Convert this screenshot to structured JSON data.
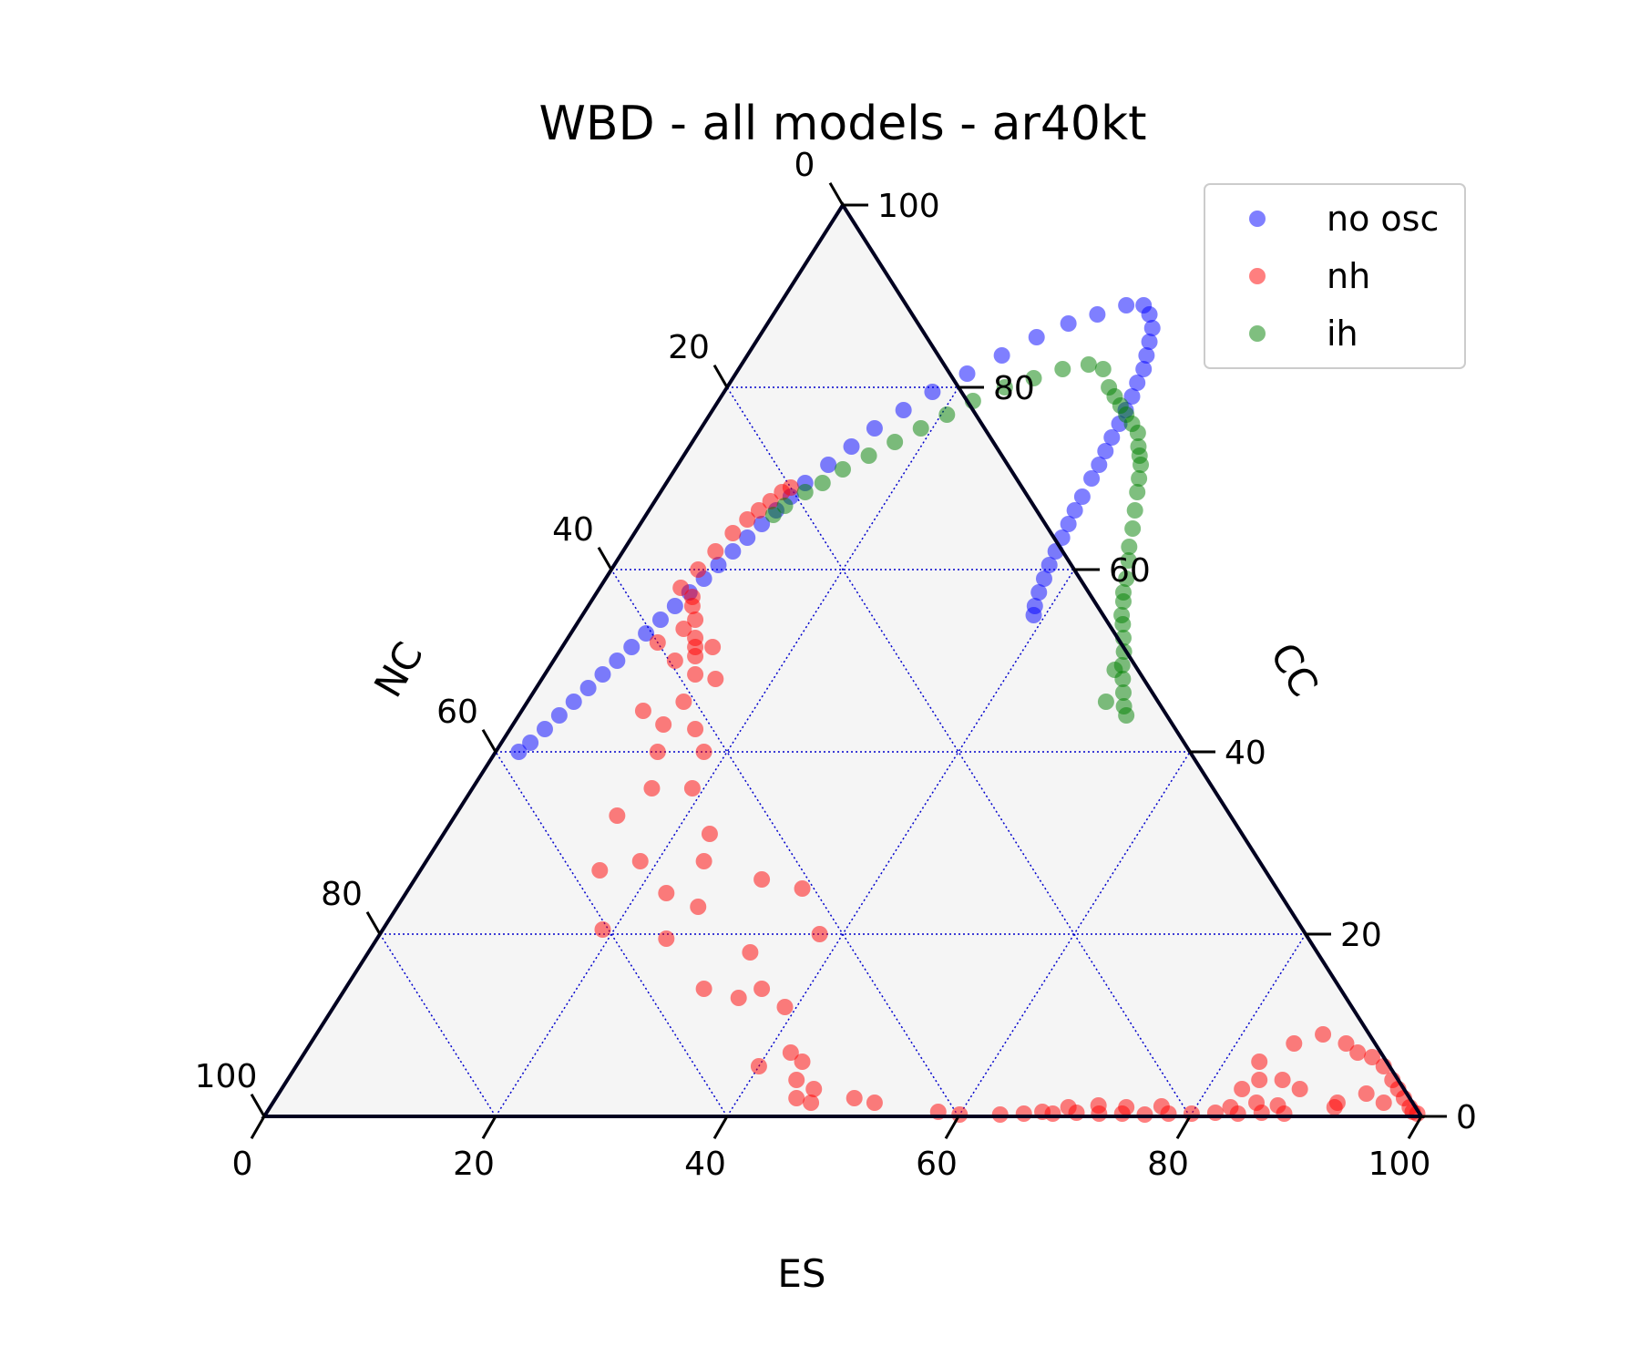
{
  "chart_data": {
    "type": "scatter",
    "subtype": "ternary",
    "title": "WBD - all models - ar40kt",
    "axes": {
      "bottom": {
        "label": "ES",
        "ticks": [
          "0",
          "20",
          "40",
          "60",
          "80",
          "100"
        ]
      },
      "left": {
        "label": "NC",
        "ticks": [
          "0",
          "20",
          "40",
          "60",
          "80",
          "100"
        ]
      },
      "right": {
        "label": "CC",
        "ticks": [
          "0",
          "20",
          "40",
          "60",
          "80",
          "100"
        ]
      }
    },
    "range": [
      0,
      100
    ],
    "grid": true,
    "legend_position": "top-right",
    "series": [
      {
        "name": "no osc",
        "color": "#0000ff",
        "points": [
          {
            "es": 2,
            "cc": 40
          },
          {
            "es": 2.5,
            "cc": 41
          },
          {
            "es": 3,
            "cc": 42.5
          },
          {
            "es": 3.5,
            "cc": 44
          },
          {
            "es": 4,
            "cc": 45.5
          },
          {
            "es": 4.5,
            "cc": 47
          },
          {
            "es": 5,
            "cc": 48.5
          },
          {
            "es": 5.5,
            "cc": 50
          },
          {
            "es": 6,
            "cc": 51.5
          },
          {
            "es": 6.5,
            "cc": 53
          },
          {
            "es": 7,
            "cc": 54.5
          },
          {
            "es": 7.5,
            "cc": 56
          },
          {
            "es": 8,
            "cc": 57.5
          },
          {
            "es": 8.5,
            "cc": 59
          },
          {
            "es": 9,
            "cc": 60.5
          },
          {
            "es": 9.5,
            "cc": 62
          },
          {
            "es": 10,
            "cc": 63.5
          },
          {
            "es": 10.5,
            "cc": 65
          },
          {
            "es": 11,
            "cc": 66.5
          },
          {
            "es": 11.5,
            "cc": 68
          },
          {
            "es": 12,
            "cc": 69.5
          },
          {
            "es": 13,
            "cc": 71.5
          },
          {
            "es": 14,
            "cc": 73.5
          },
          {
            "es": 15,
            "cc": 75.5
          },
          {
            "es": 16.5,
            "cc": 77.5
          },
          {
            "es": 18,
            "cc": 79.5
          },
          {
            "es": 20,
            "cc": 81.5
          },
          {
            "es": 22,
            "cc": 83.5
          },
          {
            "es": 24,
            "cc": 85.5
          },
          {
            "es": 26,
            "cc": 87
          },
          {
            "es": 28,
            "cc": 88
          },
          {
            "es": 30,
            "cc": 89
          },
          {
            "es": 31.5,
            "cc": 89
          },
          {
            "es": 32.5,
            "cc": 88
          },
          {
            "es": 33.5,
            "cc": 86.5
          },
          {
            "es": 34,
            "cc": 85
          },
          {
            "es": 34.5,
            "cc": 83.5
          },
          {
            "es": 35,
            "cc": 82
          },
          {
            "es": 35.2,
            "cc": 80.5
          },
          {
            "es": 35.5,
            "cc": 79
          },
          {
            "es": 35.7,
            "cc": 77.5
          },
          {
            "es": 35.9,
            "cc": 76
          },
          {
            "es": 36,
            "cc": 74.5
          },
          {
            "es": 36.2,
            "cc": 73
          },
          {
            "es": 36.4,
            "cc": 71.5
          },
          {
            "es": 36.5,
            "cc": 70
          },
          {
            "es": 36.7,
            "cc": 68
          },
          {
            "es": 36.8,
            "cc": 66.5
          },
          {
            "es": 37,
            "cc": 65
          },
          {
            "es": 37.2,
            "cc": 63.5
          },
          {
            "es": 37.4,
            "cc": 62
          },
          {
            "es": 37.6,
            "cc": 60.5
          },
          {
            "es": 37.9,
            "cc": 59
          },
          {
            "es": 38.2,
            "cc": 57.5
          },
          {
            "es": 38.6,
            "cc": 56
          },
          {
            "es": 39,
            "cc": 55
          }
        ]
      },
      {
        "name": "nh",
        "color": "#ff0000",
        "points": [
          {
            "es": 7,
            "cc": 58
          },
          {
            "es": 7.5,
            "cc": 60
          },
          {
            "es": 8,
            "cc": 62
          },
          {
            "es": 8.5,
            "cc": 64
          },
          {
            "es": 9,
            "cc": 65.5
          },
          {
            "es": 9.5,
            "cc": 66.5
          },
          {
            "es": 10,
            "cc": 67.5
          },
          {
            "es": 10.5,
            "cc": 68.5
          },
          {
            "es": 11,
            "cc": 69
          },
          {
            "es": 8.5,
            "cc": 57
          },
          {
            "es": 9,
            "cc": 56
          },
          {
            "es": 10,
            "cc": 54.5
          },
          {
            "es": 9.5,
            "cc": 53.5
          },
          {
            "es": 11,
            "cc": 52.5
          },
          {
            "es": 11.5,
            "cc": 51.5
          },
          {
            "es": 12,
            "cc": 50.5
          },
          {
            "es": 13,
            "cc": 51.5
          },
          {
            "es": 8,
            "cc": 52
          },
          {
            "es": 10.5,
            "cc": 50
          },
          {
            "es": 13,
            "cc": 48.5
          },
          {
            "es": 15,
            "cc": 48
          },
          {
            "es": 13.5,
            "cc": 45.5
          },
          {
            "es": 10.5,
            "cc": 44.5
          },
          {
            "es": 13,
            "cc": 43
          },
          {
            "es": 16,
            "cc": 42.5
          },
          {
            "es": 14,
            "cc": 40
          },
          {
            "es": 18,
            "cc": 40
          },
          {
            "es": 19,
            "cc": 36
          },
          {
            "es": 15.5,
            "cc": 36
          },
          {
            "es": 14,
            "cc": 33
          },
          {
            "es": 23,
            "cc": 31
          },
          {
            "es": 18.5,
            "cc": 28
          },
          {
            "es": 24,
            "cc": 28
          },
          {
            "es": 15.5,
            "cc": 27
          },
          {
            "es": 30,
            "cc": 26
          },
          {
            "es": 34,
            "cc": 25
          },
          {
            "es": 22.5,
            "cc": 24.5
          },
          {
            "es": 26,
            "cc": 23
          },
          {
            "es": 19,
            "cc": 20.5
          },
          {
            "es": 25,
            "cc": 19.5
          },
          {
            "es": 38,
            "cc": 20
          },
          {
            "es": 33,
            "cc": 18
          },
          {
            "es": 31,
            "cc": 14
          },
          {
            "es": 34.5,
            "cc": 13
          },
          {
            "es": 36,
            "cc": 14
          },
          {
            "es": 39,
            "cc": 12
          },
          {
            "es": 42,
            "cc": 7
          },
          {
            "es": 43.5,
            "cc": 6
          },
          {
            "es": 40,
            "cc": 5.5
          },
          {
            "es": 44,
            "cc": 4
          },
          {
            "es": 46,
            "cc": 3
          },
          {
            "es": 45,
            "cc": 2
          },
          {
            "es": 50,
            "cc": 2
          },
          {
            "es": 46.5,
            "cc": 1.5
          },
          {
            "es": 52,
            "cc": 1.5
          },
          {
            "es": 58,
            "cc": 0.5
          },
          {
            "es": 60,
            "cc": 0.2
          },
          {
            "es": 63.5,
            "cc": 0.2
          },
          {
            "es": 65.5,
            "cc": 0.3
          },
          {
            "es": 67,
            "cc": 0.5
          },
          {
            "es": 68,
            "cc": 0.3
          },
          {
            "es": 70,
            "cc": 0.4
          },
          {
            "es": 72,
            "cc": 0.3
          },
          {
            "es": 74,
            "cc": 0.3
          },
          {
            "es": 76,
            "cc": 0.2
          },
          {
            "es": 78,
            "cc": 0.3
          },
          {
            "es": 80,
            "cc": 0.3
          },
          {
            "es": 82,
            "cc": 0.4
          },
          {
            "es": 84,
            "cc": 0.3
          },
          {
            "es": 86,
            "cc": 0.4
          },
          {
            "es": 88,
            "cc": 0.3
          },
          {
            "es": 69,
            "cc": 1
          },
          {
            "es": 71.5,
            "cc": 1.2
          },
          {
            "es": 74,
            "cc": 1
          },
          {
            "es": 77,
            "cc": 1.1
          },
          {
            "es": 83,
            "cc": 1
          },
          {
            "es": 85,
            "cc": 1.5
          },
          {
            "es": 87,
            "cc": 1.2
          },
          {
            "es": 83,
            "cc": 3
          },
          {
            "es": 84,
            "cc": 4
          },
          {
            "es": 86,
            "cc": 4
          },
          {
            "es": 88,
            "cc": 3
          },
          {
            "es": 92,
            "cc": 1
          },
          {
            "es": 83,
            "cc": 6
          },
          {
            "es": 85,
            "cc": 8
          },
          {
            "es": 87,
            "cc": 9
          },
          {
            "es": 89.5,
            "cc": 8
          },
          {
            "es": 91,
            "cc": 7
          },
          {
            "es": 92.5,
            "cc": 6.5
          },
          {
            "es": 94,
            "cc": 5.5
          },
          {
            "es": 95.5,
            "cc": 4
          },
          {
            "es": 96.5,
            "cc": 3
          },
          {
            "es": 97.5,
            "cc": 2
          },
          {
            "es": 98.5,
            "cc": 1
          },
          {
            "es": 99.5,
            "cc": 0.3
          },
          {
            "es": 96,
            "cc": 1.5
          },
          {
            "es": 94,
            "cc": 2.5
          },
          {
            "es": 92,
            "cc": 1.5
          },
          {
            "es": 99,
            "cc": 0.5
          }
        ]
      },
      {
        "name": "ih",
        "color": "#008000",
        "points": [
          {
            "es": 11,
            "cc": 66
          },
          {
            "es": 11.5,
            "cc": 67
          },
          {
            "es": 12.5,
            "cc": 68.5
          },
          {
            "es": 13.5,
            "cc": 69.5
          },
          {
            "es": 14.5,
            "cc": 71
          },
          {
            "es": 16,
            "cc": 72.5
          },
          {
            "es": 17.5,
            "cc": 74
          },
          {
            "es": 19,
            "cc": 75.5
          },
          {
            "es": 20.5,
            "cc": 77
          },
          {
            "es": 22,
            "cc": 78.5
          },
          {
            "es": 24,
            "cc": 80
          },
          {
            "es": 26,
            "cc": 81
          },
          {
            "es": 28,
            "cc": 82
          },
          {
            "es": 30,
            "cc": 82.5
          },
          {
            "es": 31.5,
            "cc": 82
          },
          {
            "es": 33,
            "cc": 80
          },
          {
            "es": 34,
            "cc": 79
          },
          {
            "es": 35,
            "cc": 78
          },
          {
            "es": 36,
            "cc": 77
          },
          {
            "es": 37,
            "cc": 76
          },
          {
            "es": 38,
            "cc": 75
          },
          {
            "es": 38.8,
            "cc": 73.5
          },
          {
            "es": 39.4,
            "cc": 72.5
          },
          {
            "es": 40,
            "cc": 71.5
          },
          {
            "es": 40.6,
            "cc": 70
          },
          {
            "es": 41.2,
            "cc": 68.5
          },
          {
            "es": 42,
            "cc": 66.5
          },
          {
            "es": 42.8,
            "cc": 64.5
          },
          {
            "es": 43.5,
            "cc": 62.5
          },
          {
            "es": 44.2,
            "cc": 61
          },
          {
            "es": 45,
            "cc": 59
          },
          {
            "es": 45.5,
            "cc": 57.5
          },
          {
            "es": 46,
            "cc": 56.5
          },
          {
            "es": 46.6,
            "cc": 55
          },
          {
            "es": 47.2,
            "cc": 54
          },
          {
            "es": 48,
            "cc": 52.5
          },
          {
            "es": 48.8,
            "cc": 51
          },
          {
            "es": 49.4,
            "cc": 49.5
          },
          {
            "es": 50.2,
            "cc": 48
          },
          {
            "es": 51,
            "cc": 46.5
          },
          {
            "es": 51.8,
            "cc": 45
          },
          {
            "es": 52.5,
            "cc": 44
          },
          {
            "es": 49,
            "cc": 49
          },
          {
            "es": 50,
            "cc": 45.5
          }
        ]
      }
    ]
  }
}
